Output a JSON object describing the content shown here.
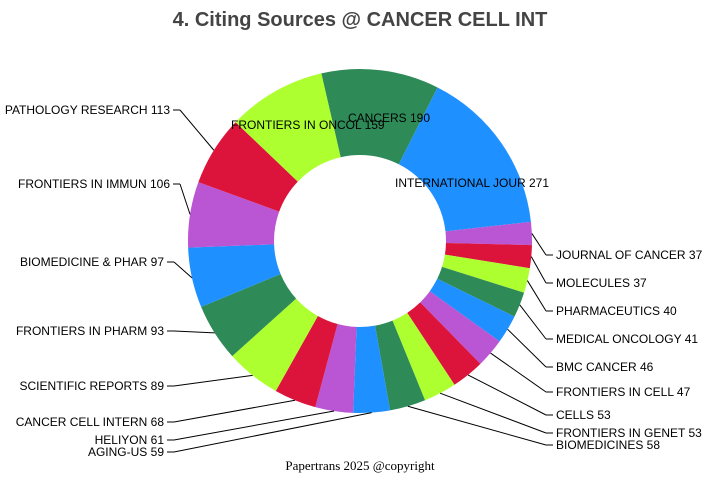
{
  "chart_data": {
    "type": "pie",
    "donut": true,
    "title": "4. Citing Sources @ CANCER CELL INT",
    "footer": "Papertrans 2025 @copyright",
    "slices": [
      {
        "label": "CANCERS 190",
        "value": 190,
        "color": "#2E8B57"
      },
      {
        "label": "INTERNATIONAL JOUR 271",
        "value": 271,
        "color": "#1E90FF"
      },
      {
        "label": "JOURNAL OF CANCER  37",
        "value": 37,
        "color": "#BA55D3"
      },
      {
        "label": "MOLECULES 37",
        "value": 37,
        "color": "#DC143C"
      },
      {
        "label": "PHARMACEUTICS 40",
        "value": 40,
        "color": "#ADFF2F"
      },
      {
        "label": "MEDICAL ONCOLOGY 41",
        "value": 41,
        "color": "#2E8B57"
      },
      {
        "label": "BMC CANCER 46",
        "value": 46,
        "color": "#1E90FF"
      },
      {
        "label": "FRONTIERS IN CELL  47",
        "value": 47,
        "color": "#BA55D3"
      },
      {
        "label": "CELLS 53",
        "value": 53,
        "color": "#DC143C"
      },
      {
        "label": "FRONTIERS IN GENET 53",
        "value": 53,
        "color": "#ADFF2F"
      },
      {
        "label": "BIOMEDICINES 58",
        "value": 58,
        "color": "#2E8B57"
      },
      {
        "label": "AGING-US 59",
        "value": 59,
        "color": "#1E90FF"
      },
      {
        "label": "HELIYON 61",
        "value": 61,
        "color": "#BA55D3"
      },
      {
        "label": "CANCER CELL INTERN 68",
        "value": 68,
        "color": "#DC143C"
      },
      {
        "label": "SCIENTIFIC REPORTS 89",
        "value": 89,
        "color": "#ADFF2F"
      },
      {
        "label": "FRONTIERS IN PHARM 93",
        "value": 93,
        "color": "#2E8B57"
      },
      {
        "label": "BIOMEDICINE & PHAR 97",
        "value": 97,
        "color": "#1E90FF"
      },
      {
        "label": "FRONTIERS IN IMMUN 106",
        "value": 106,
        "color": "#BA55D3"
      },
      {
        "label": "PATHOLOGY RESEARCH 113",
        "value": 113,
        "color": "#DC143C"
      },
      {
        "label": "FRONTIERS IN ONCOL 159",
        "value": 159,
        "color": "#ADFF2F"
      }
    ]
  }
}
